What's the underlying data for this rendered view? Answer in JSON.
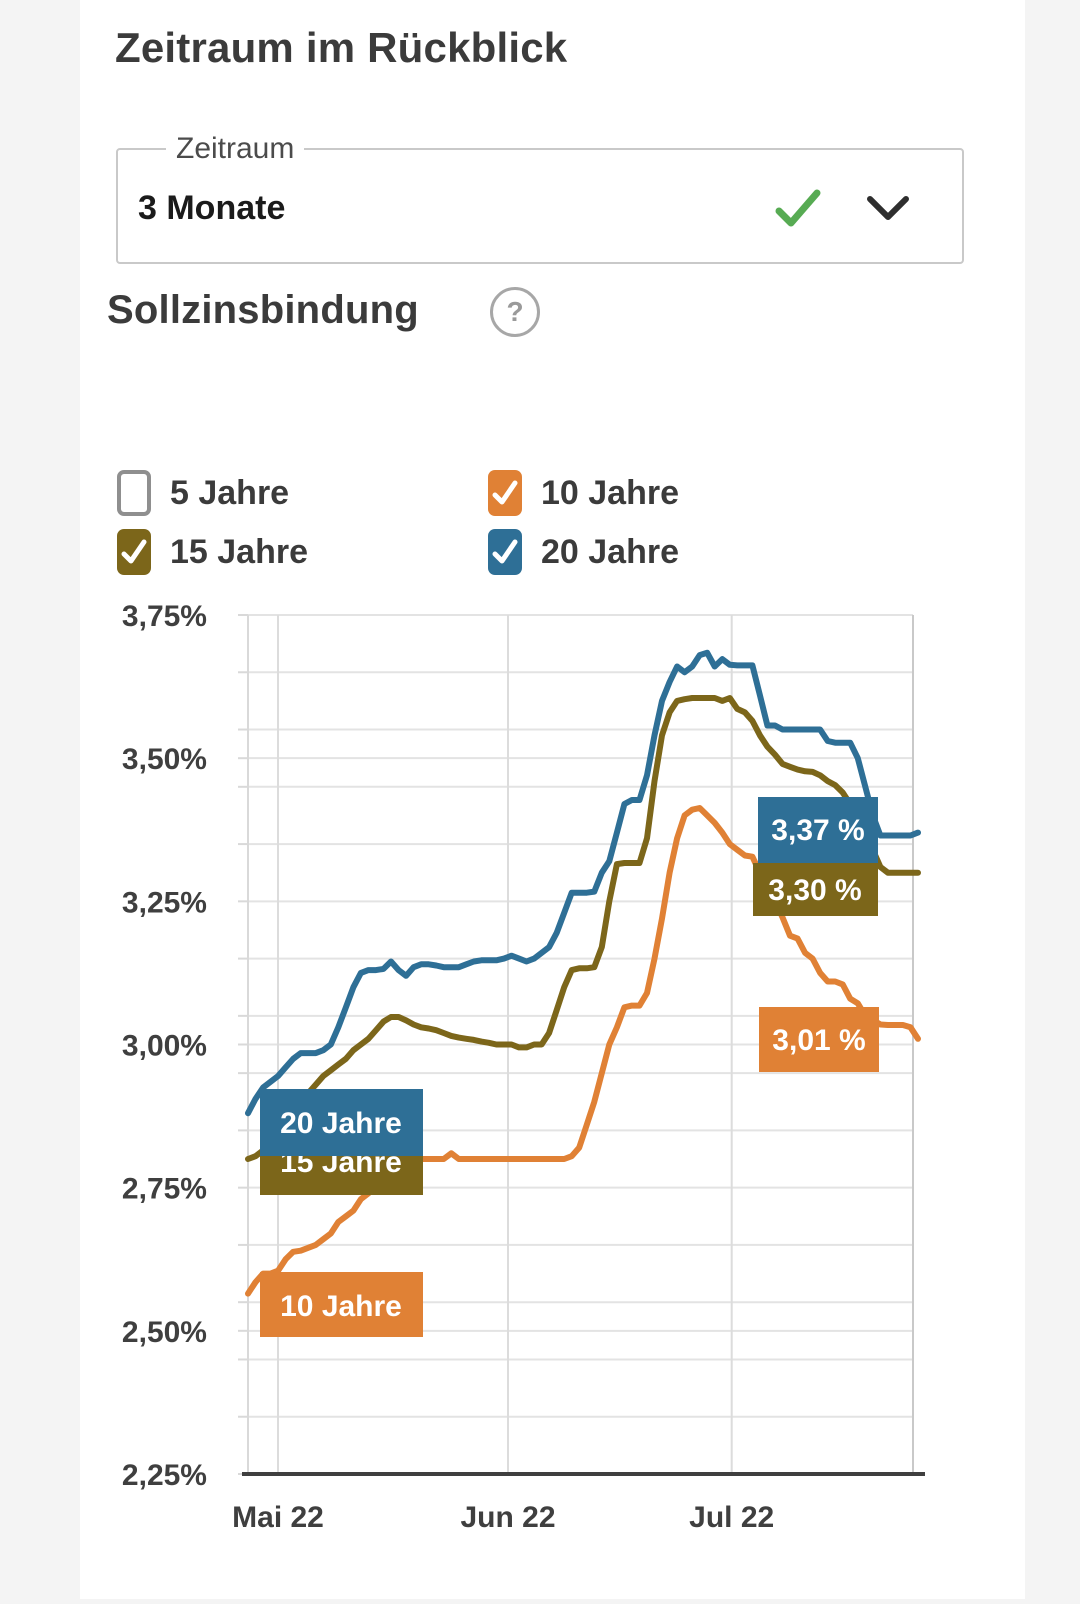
{
  "page": {
    "background": "#f4f4f4",
    "card_background": "#ffffff"
  },
  "header": {
    "title": "Zeitraum im Rückblick"
  },
  "period_select": {
    "label": "Zeitraum",
    "value": "3 Monate",
    "valid_icon": "green-checkmark",
    "chevron_icon": "chevron-down",
    "check_color": "#57ab53",
    "chevron_color": "#2e2e2e"
  },
  "section": {
    "title": "Sollzinsbindung",
    "help_glyph": "?"
  },
  "legend": {
    "items": [
      {
        "label": "5 Jahre",
        "checked": false,
        "color": "#8f8f8f"
      },
      {
        "label": "10 Jahre",
        "checked": true,
        "color": "#e08135"
      },
      {
        "label": "15 Jahre",
        "checked": true,
        "color": "#7c661a"
      },
      {
        "label": "20 Jahre",
        "checked": true,
        "color": "#2e6f96"
      }
    ]
  },
  "chart_data": {
    "type": "line",
    "title": "",
    "xlabel": "",
    "ylabel": "",
    "grid": "on",
    "x_axis": {
      "tick_labels": [
        "Mai 22",
        "Jun 22",
        "Jul 22"
      ],
      "start_date": "2022-04-27",
      "end_date": "2022-07-25",
      "frequency": "daily",
      "points": 90
    },
    "y_axis": {
      "tick_labels": [
        "3,75%",
        "3,50%",
        "3,25%",
        "3,00%",
        "2,75%",
        "2,50%",
        "2,25%"
      ],
      "tick_values": [
        3.75,
        3.5,
        3.25,
        3.0,
        2.75,
        2.5,
        2.25
      ],
      "minor_grid_step": 0.1,
      "min": 2.25,
      "max": 3.75,
      "unit": "%"
    },
    "series": [
      {
        "name": "10 Jahre",
        "color": "#e08135",
        "end_label": "3,01 %",
        "end_value": 3.01,
        "values": [
          2.565,
          2.585,
          2.6,
          2.6,
          2.605,
          2.625,
          2.638,
          2.64,
          2.645,
          2.65,
          2.66,
          2.67,
          2.69,
          2.7,
          2.71,
          2.73,
          2.74,
          2.755,
          2.77,
          2.78,
          2.79,
          2.795,
          2.8,
          2.8,
          2.8,
          2.8,
          2.8,
          2.81,
          2.8,
          2.8,
          2.8,
          2.8,
          2.8,
          2.8,
          2.8,
          2.8,
          2.8,
          2.8,
          2.8,
          2.8,
          2.8,
          2.8,
          2.8,
          2.805,
          2.82,
          2.86,
          2.9,
          2.95,
          3.0,
          3.03,
          3.065,
          3.068,
          3.068,
          3.09,
          3.15,
          3.22,
          3.3,
          3.36,
          3.4,
          3.41,
          3.413,
          3.4,
          3.387,
          3.37,
          3.35,
          3.34,
          3.33,
          3.328,
          3.3,
          3.28,
          3.25,
          3.222,
          3.19,
          3.185,
          3.16,
          3.15,
          3.125,
          3.11,
          3.11,
          3.105,
          3.08,
          3.072,
          3.05,
          3.043,
          3.035,
          3.034,
          3.034,
          3.034,
          3.03,
          3.01
        ]
      },
      {
        "name": "15 Jahre",
        "color": "#7c661a",
        "end_label": "3,30 %",
        "end_value": 3.3,
        "values": [
          2.8,
          2.805,
          2.815,
          2.825,
          2.835,
          2.855,
          2.875,
          2.895,
          2.915,
          2.93,
          2.945,
          2.955,
          2.965,
          2.975,
          2.99,
          3.0,
          3.01,
          3.025,
          3.04,
          3.048,
          3.048,
          3.042,
          3.035,
          3.03,
          3.028,
          3.025,
          3.02,
          3.015,
          3.012,
          3.01,
          3.008,
          3.005,
          3.003,
          3.0,
          3.0,
          3.0,
          2.995,
          2.995,
          3.0,
          3.0,
          3.02,
          3.06,
          3.1,
          3.13,
          3.133,
          3.133,
          3.135,
          3.17,
          3.25,
          3.315,
          3.317,
          3.317,
          3.317,
          3.36,
          3.46,
          3.54,
          3.58,
          3.6,
          3.603,
          3.605,
          3.605,
          3.605,
          3.605,
          3.6,
          3.605,
          3.586,
          3.58,
          3.565,
          3.54,
          3.52,
          3.506,
          3.49,
          3.485,
          3.48,
          3.477,
          3.476,
          3.47,
          3.46,
          3.453,
          3.44,
          3.42,
          3.4,
          3.37,
          3.34,
          3.31,
          3.3,
          3.3,
          3.3,
          3.3,
          3.3
        ]
      },
      {
        "name": "20 Jahre",
        "color": "#2e6f96",
        "end_label": "3,37 %",
        "end_value": 3.37,
        "values": [
          2.88,
          2.905,
          2.925,
          2.935,
          2.945,
          2.96,
          2.975,
          2.985,
          2.985,
          2.985,
          2.99,
          3.0,
          3.03,
          3.065,
          3.1,
          3.125,
          3.13,
          3.13,
          3.132,
          3.145,
          3.13,
          3.12,
          3.135,
          3.14,
          3.14,
          3.138,
          3.135,
          3.135,
          3.135,
          3.14,
          3.145,
          3.147,
          3.147,
          3.147,
          3.15,
          3.155,
          3.15,
          3.145,
          3.15,
          3.16,
          3.17,
          3.195,
          3.23,
          3.265,
          3.265,
          3.265,
          3.267,
          3.3,
          3.32,
          3.37,
          3.42,
          3.427,
          3.427,
          3.47,
          3.54,
          3.6,
          3.633,
          3.66,
          3.65,
          3.66,
          3.68,
          3.684,
          3.66,
          3.673,
          3.663,
          3.662,
          3.662,
          3.662,
          3.61,
          3.557,
          3.557,
          3.55,
          3.55,
          3.55,
          3.55,
          3.55,
          3.55,
          3.53,
          3.527,
          3.527,
          3.527,
          3.5,
          3.45,
          3.4,
          3.365,
          3.365,
          3.365,
          3.365,
          3.365,
          3.37
        ]
      }
    ],
    "legend_position": "above-chart",
    "colors": {
      "gridline": "#e3e3e3",
      "axis": "#3f3f3f",
      "tick": "#d9d9d9"
    }
  }
}
